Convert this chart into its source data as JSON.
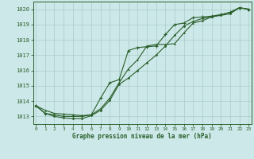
{
  "title": "Graphe pression niveau de la mer (hPa)",
  "bg_color": "#cce8e8",
  "grid_color": "#aacccc",
  "line_color": "#2a5e2a",
  "xlim": [
    -0.3,
    23.3
  ],
  "ylim": [
    1012.5,
    1020.5
  ],
  "yticks": [
    1013,
    1014,
    1015,
    1016,
    1017,
    1018,
    1019,
    1020
  ],
  "xticks": [
    0,
    1,
    2,
    3,
    4,
    5,
    6,
    7,
    8,
    9,
    10,
    11,
    12,
    13,
    14,
    15,
    16,
    17,
    18,
    19,
    20,
    21,
    22,
    23
  ],
  "s1_x": [
    0,
    1,
    2,
    3,
    4,
    5,
    6,
    7,
    8,
    9,
    10,
    11,
    12,
    13,
    14,
    15,
    16,
    17,
    18,
    19,
    20,
    21,
    22,
    23
  ],
  "s1_y": [
    1013.7,
    1013.2,
    1013.0,
    1012.9,
    1012.85,
    1012.85,
    1013.05,
    1013.4,
    1014.05,
    1015.1,
    1015.5,
    1016.0,
    1016.5,
    1017.0,
    1017.6,
    1018.3,
    1018.9,
    1019.2,
    1019.4,
    1019.5,
    1019.6,
    1019.7,
    1020.1,
    1020.0
  ],
  "s2_x": [
    0,
    1,
    2,
    3,
    4,
    5,
    6,
    7,
    8,
    9,
    10,
    11,
    12,
    13,
    14,
    15,
    16,
    17,
    18,
    19,
    20,
    21,
    22,
    23
  ],
  "s2_y": [
    1013.7,
    1013.2,
    1013.1,
    1013.0,
    1013.0,
    1013.0,
    1013.1,
    1014.2,
    1015.2,
    1015.4,
    1017.3,
    1017.5,
    1017.55,
    1017.6,
    1018.35,
    1019.0,
    1019.1,
    1019.45,
    1019.5,
    1019.55,
    1019.65,
    1019.8,
    1020.1,
    1020.0
  ],
  "s3_x": [
    0,
    1,
    2,
    3,
    4,
    5,
    6,
    7,
    8,
    9,
    10,
    11,
    12,
    13,
    14,
    15,
    16,
    17,
    18,
    19,
    20,
    21,
    22,
    23
  ],
  "s3_y": [
    1013.7,
    1013.4,
    1013.2,
    1013.15,
    1013.1,
    1013.05,
    1013.1,
    1013.5,
    1014.2,
    1015.2,
    1016.1,
    1016.7,
    1017.6,
    1017.7,
    1017.7,
    1017.75,
    1018.45,
    1019.1,
    1019.25,
    1019.5,
    1019.65,
    1019.8,
    1020.1,
    1020.0
  ]
}
